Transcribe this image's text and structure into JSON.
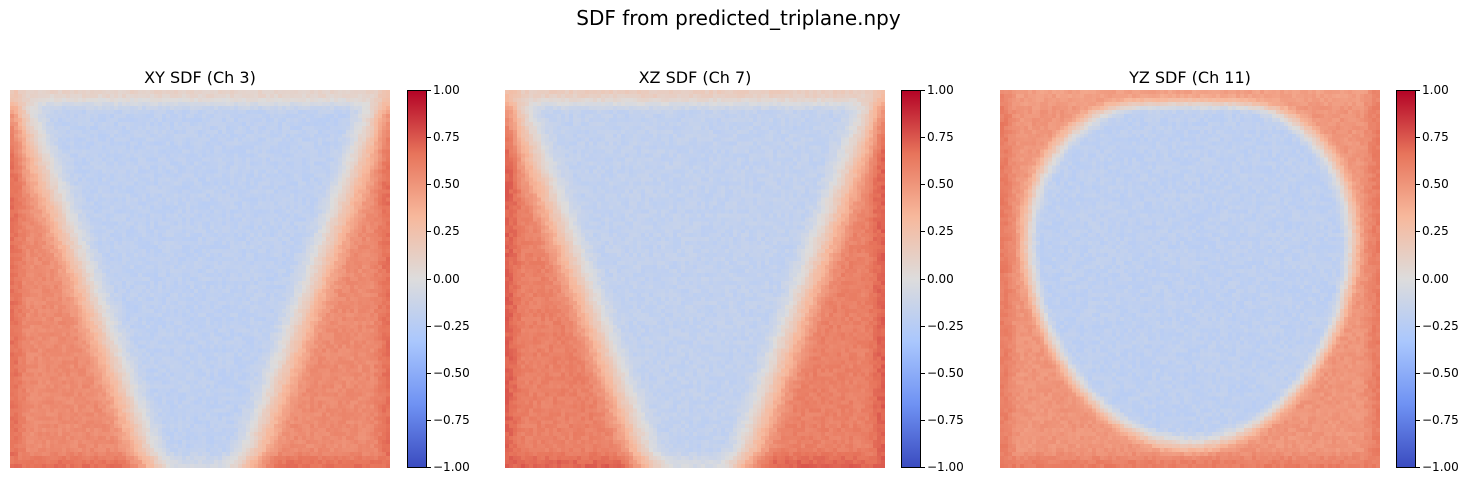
{
  "suptitle": "SDF from predicted_triplane.npy",
  "colormap": "coolwarm",
  "colormap_stops": [
    "#3b4cc0",
    "#6f92f3",
    "#aac7fd",
    "#dddcdc",
    "#f7b89c",
    "#e7745b",
    "#b40426"
  ],
  "chart_data": [
    {
      "type": "heatmap",
      "title": "XY SDF (Ch 3)",
      "pattern": "v-shape",
      "vmin": -1.0,
      "vmax": 1.0,
      "inside_value": -0.2,
      "outside_value": 0.55,
      "top_edge_value": 0.1,
      "colorbar_ticks": [
        "1.00",
        "0.75",
        "0.50",
        "0.25",
        "0.00",
        "−0.25",
        "−0.50",
        "−0.75",
        "−1.00"
      ],
      "axis": "off"
    },
    {
      "type": "heatmap",
      "title": "XZ SDF (Ch 7)",
      "pattern": "v-shape",
      "vmin": -1.0,
      "vmax": 1.0,
      "inside_value": -0.18,
      "outside_value": 0.6,
      "top_edge_value": 0.15,
      "colorbar_ticks": [
        "1.00",
        "0.75",
        "0.50",
        "0.25",
        "0.00",
        "−0.25",
        "−0.50",
        "−0.75",
        "−1.00"
      ],
      "axis": "off"
    },
    {
      "type": "heatmap",
      "title": "YZ SDF (Ch 11)",
      "pattern": "u-shape",
      "vmin": -1.0,
      "vmax": 1.0,
      "inside_value": -0.2,
      "outside_value": 0.5,
      "top_edge_value": 0.45,
      "colorbar_ticks": [
        "1.00",
        "0.75",
        "0.50",
        "0.25",
        "0.00",
        "−0.25",
        "−0.50",
        "−0.75",
        "−1.00"
      ],
      "axis": "off"
    }
  ]
}
